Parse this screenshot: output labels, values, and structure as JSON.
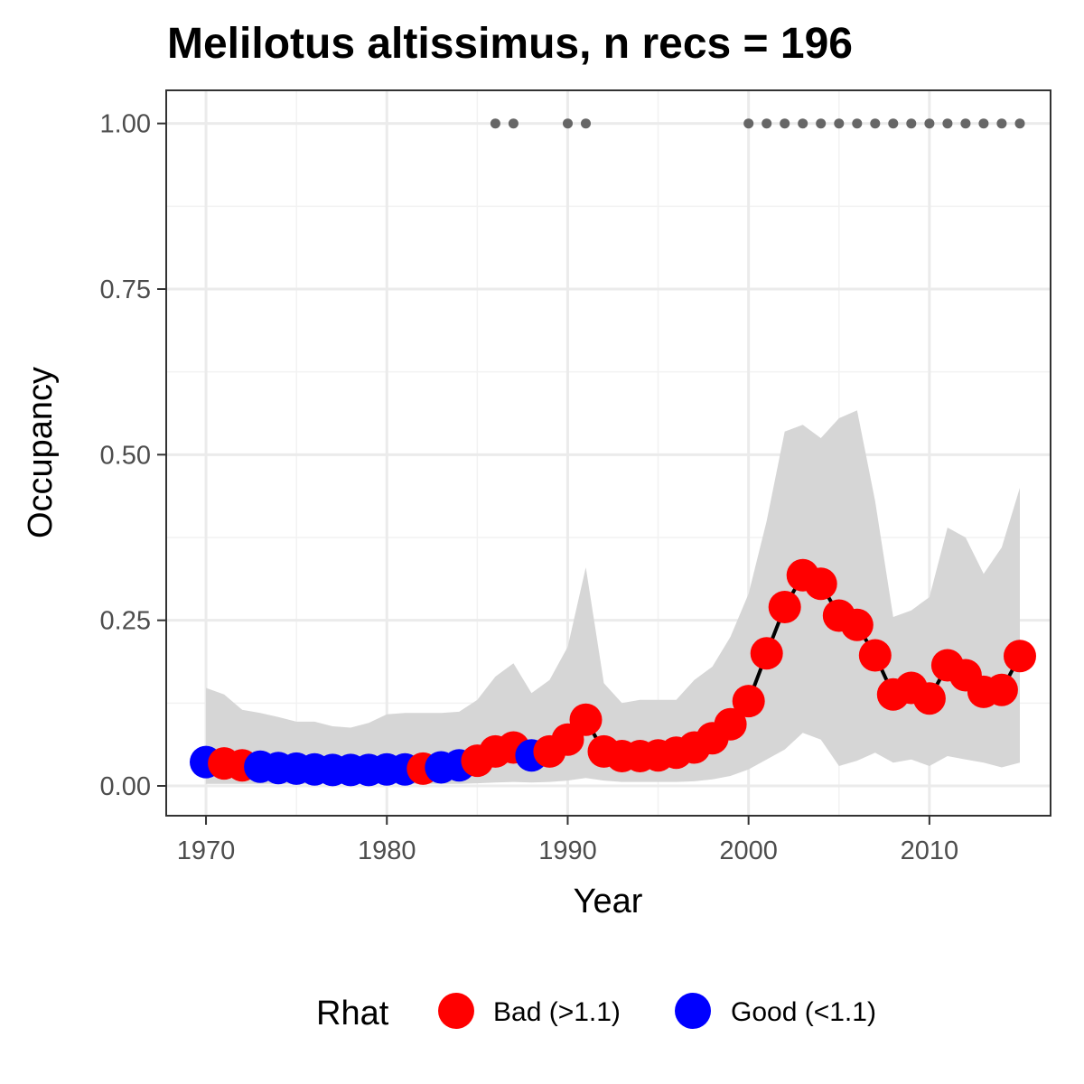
{
  "chart_data": {
    "type": "line",
    "title": "Melilotus altissimus, n recs = 196",
    "xlabel": "Year",
    "ylabel": "Occupancy",
    "xlim": [
      1967.8,
      2016.7
    ],
    "ylim": [
      -0.045,
      1.05
    ],
    "xticks": [
      1970,
      1980,
      1990,
      2000,
      2010
    ],
    "xtick_labels": [
      "1970",
      "1980",
      "1990",
      "2000",
      "2010"
    ],
    "yticks": [
      0,
      0.25,
      0.5,
      0.75,
      1
    ],
    "ytick_labels": [
      "0.00",
      "0.25",
      "0.50",
      "0.75",
      "1.00"
    ],
    "grid": true,
    "legend": {
      "title": "Rhat",
      "position": "bottom",
      "entries": [
        {
          "label": "Bad (>1.1)",
          "color": "#ff0000"
        },
        {
          "label": "Good (<1.1)",
          "color": "#0000ff"
        }
      ]
    },
    "colors": {
      "bad": "#ff0000",
      "good": "#0000ff",
      "line": "#000000",
      "ribbon": "#d6d6d6",
      "record_dots": "#666666"
    },
    "years": [
      1970,
      1971,
      1972,
      1973,
      1974,
      1975,
      1976,
      1977,
      1978,
      1979,
      1980,
      1981,
      1982,
      1983,
      1984,
      1985,
      1986,
      1987,
      1988,
      1989,
      1990,
      1991,
      1992,
      1993,
      1994,
      1995,
      1996,
      1997,
      1998,
      1999,
      2000,
      2001,
      2002,
      2003,
      2004,
      2005,
      2006,
      2007,
      2008,
      2009,
      2010,
      2011,
      2012,
      2013,
      2014,
      2015
    ],
    "occupancy": [
      0.036,
      0.034,
      0.031,
      0.029,
      0.027,
      0.026,
      0.025,
      0.024,
      0.024,
      0.024,
      0.025,
      0.025,
      0.026,
      0.028,
      0.031,
      0.038,
      0.052,
      0.058,
      0.046,
      0.052,
      0.07,
      0.1,
      0.052,
      0.045,
      0.045,
      0.046,
      0.05,
      0.058,
      0.072,
      0.093,
      0.128,
      0.2,
      0.27,
      0.318,
      0.305,
      0.257,
      0.243,
      0.197,
      0.138,
      0.148,
      0.132,
      0.182,
      0.167,
      0.142,
      0.145,
      0.196
    ],
    "rhat": [
      "Good",
      "Bad",
      "Bad",
      "Good",
      "Good",
      "Good",
      "Good",
      "Good",
      "Good",
      "Good",
      "Good",
      "Good",
      "Bad",
      "Good",
      "Good",
      "Bad",
      "Bad",
      "Bad",
      "Good",
      "Bad",
      "Bad",
      "Bad",
      "Bad",
      "Bad",
      "Bad",
      "Bad",
      "Bad",
      "Bad",
      "Bad",
      "Bad",
      "Bad",
      "Bad",
      "Bad",
      "Bad",
      "Bad",
      "Bad",
      "Bad",
      "Bad",
      "Bad",
      "Bad",
      "Bad",
      "Bad",
      "Bad",
      "Bad",
      "Bad",
      "Bad"
    ],
    "ci_lower": [
      0.003,
      0.003,
      0.003,
      0.003,
      0.003,
      0.003,
      0.003,
      0.003,
      0.003,
      0.003,
      0.003,
      0.003,
      0.003,
      0.003,
      0.003,
      0.004,
      0.005,
      0.006,
      0.005,
      0.006,
      0.008,
      0.012,
      0.008,
      0.006,
      0.006,
      0.006,
      0.006,
      0.007,
      0.01,
      0.015,
      0.025,
      0.04,
      0.055,
      0.08,
      0.07,
      0.03,
      0.038,
      0.05,
      0.035,
      0.04,
      0.03,
      0.045,
      0.04,
      0.035,
      0.028,
      0.035
    ],
    "ci_upper": [
      0.148,
      0.138,
      0.115,
      0.11,
      0.104,
      0.097,
      0.097,
      0.09,
      0.088,
      0.095,
      0.108,
      0.11,
      0.11,
      0.11,
      0.112,
      0.13,
      0.165,
      0.185,
      0.14,
      0.16,
      0.21,
      0.33,
      0.155,
      0.125,
      0.13,
      0.13,
      0.13,
      0.16,
      0.18,
      0.225,
      0.29,
      0.4,
      0.535,
      0.545,
      0.525,
      0.555,
      0.567,
      0.43,
      0.255,
      0.265,
      0.285,
      0.39,
      0.375,
      0.32,
      0.36,
      0.45
    ],
    "record_years": [
      1986,
      1987,
      1990,
      1991,
      2000,
      2001,
      2002,
      2003,
      2004,
      2005,
      2006,
      2007,
      2008,
      2009,
      2010,
      2011,
      2012,
      2013,
      2014,
      2015
    ],
    "record_value": 1.0
  }
}
